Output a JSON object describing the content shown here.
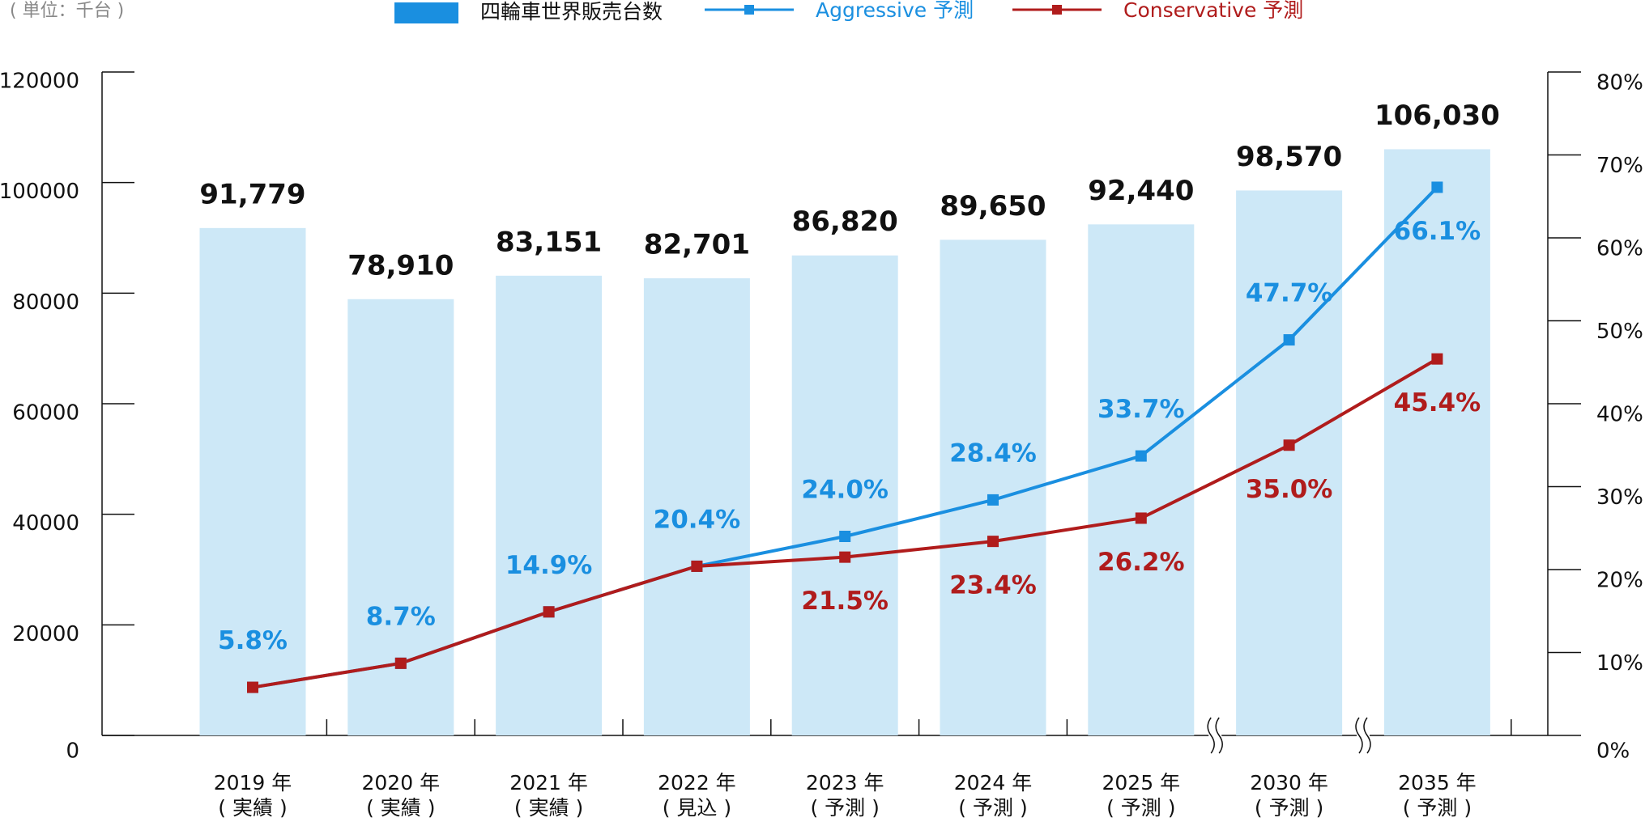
{
  "chart_data": {
    "type": "bar",
    "unit_label": "( 単位：千台 )",
    "categories": [
      [
        "2019 年",
        "( 実績 )"
      ],
      [
        "2020 年",
        "( 実績 )"
      ],
      [
        "2021 年",
        "( 実績 )"
      ],
      [
        "2022 年",
        "( 見込 )"
      ],
      [
        "2023 年",
        "( 予測 )"
      ],
      [
        "2024 年",
        "( 予測 )"
      ],
      [
        "2025 年",
        "( 予測 )"
      ],
      [
        "2030 年",
        "( 予測 )"
      ],
      [
        "2035 年",
        "( 予測 )"
      ]
    ],
    "series": [
      {
        "name": "四輪車世界販売台数",
        "type": "bar",
        "color": "#cde8f7",
        "values": [
          91779,
          78910,
          83151,
          82701,
          86820,
          89650,
          92440,
          98570,
          106030
        ],
        "value_labels": [
          "91,779",
          "78,910",
          "83,151",
          "82,701",
          "86,820",
          "89,650",
          "92,440",
          "98,570",
          "106,030"
        ]
      },
      {
        "name": "Aggressive 予測",
        "type": "line",
        "axis": "y2",
        "color": "#1a8fe0",
        "values": [
          5.8,
          8.7,
          14.9,
          20.4,
          24.0,
          28.4,
          33.7,
          47.7,
          66.1
        ],
        "value_labels": [
          "5.8%",
          "8.7%",
          "14.9%",
          "20.4%",
          "24.0%",
          "28.4%",
          "33.7%",
          "47.7%",
          "66.1%"
        ]
      },
      {
        "name": "Conservative 予測",
        "type": "line",
        "axis": "y2",
        "color": "#b01c1c",
        "values": [
          5.8,
          8.7,
          14.9,
          20.4,
          21.5,
          23.4,
          26.2,
          35.0,
          45.4
        ],
        "value_labels": [
          null,
          null,
          null,
          null,
          "21.5%",
          "23.4%",
          "26.2%",
          "35.0%",
          "45.4%"
        ]
      }
    ],
    "ylim": [
      0,
      120000
    ],
    "yticks": [
      0,
      20000,
      40000,
      60000,
      80000,
      100000,
      120000
    ],
    "y2lim": [
      0,
      80
    ],
    "y2ticks": [
      {
        "value": 0,
        "label": "0%"
      },
      {
        "value": 10,
        "label": "10%"
      },
      {
        "value": 20,
        "label": "20%"
      },
      {
        "value": 30,
        "label": "30%"
      },
      {
        "value": 40,
        "label": "40%"
      },
      {
        "value": 50,
        "label": "50%"
      },
      {
        "value": 60,
        "label": "60%"
      },
      {
        "value": 70,
        "label": "70%"
      },
      {
        "value": 80,
        "label": "80%"
      }
    ]
  }
}
